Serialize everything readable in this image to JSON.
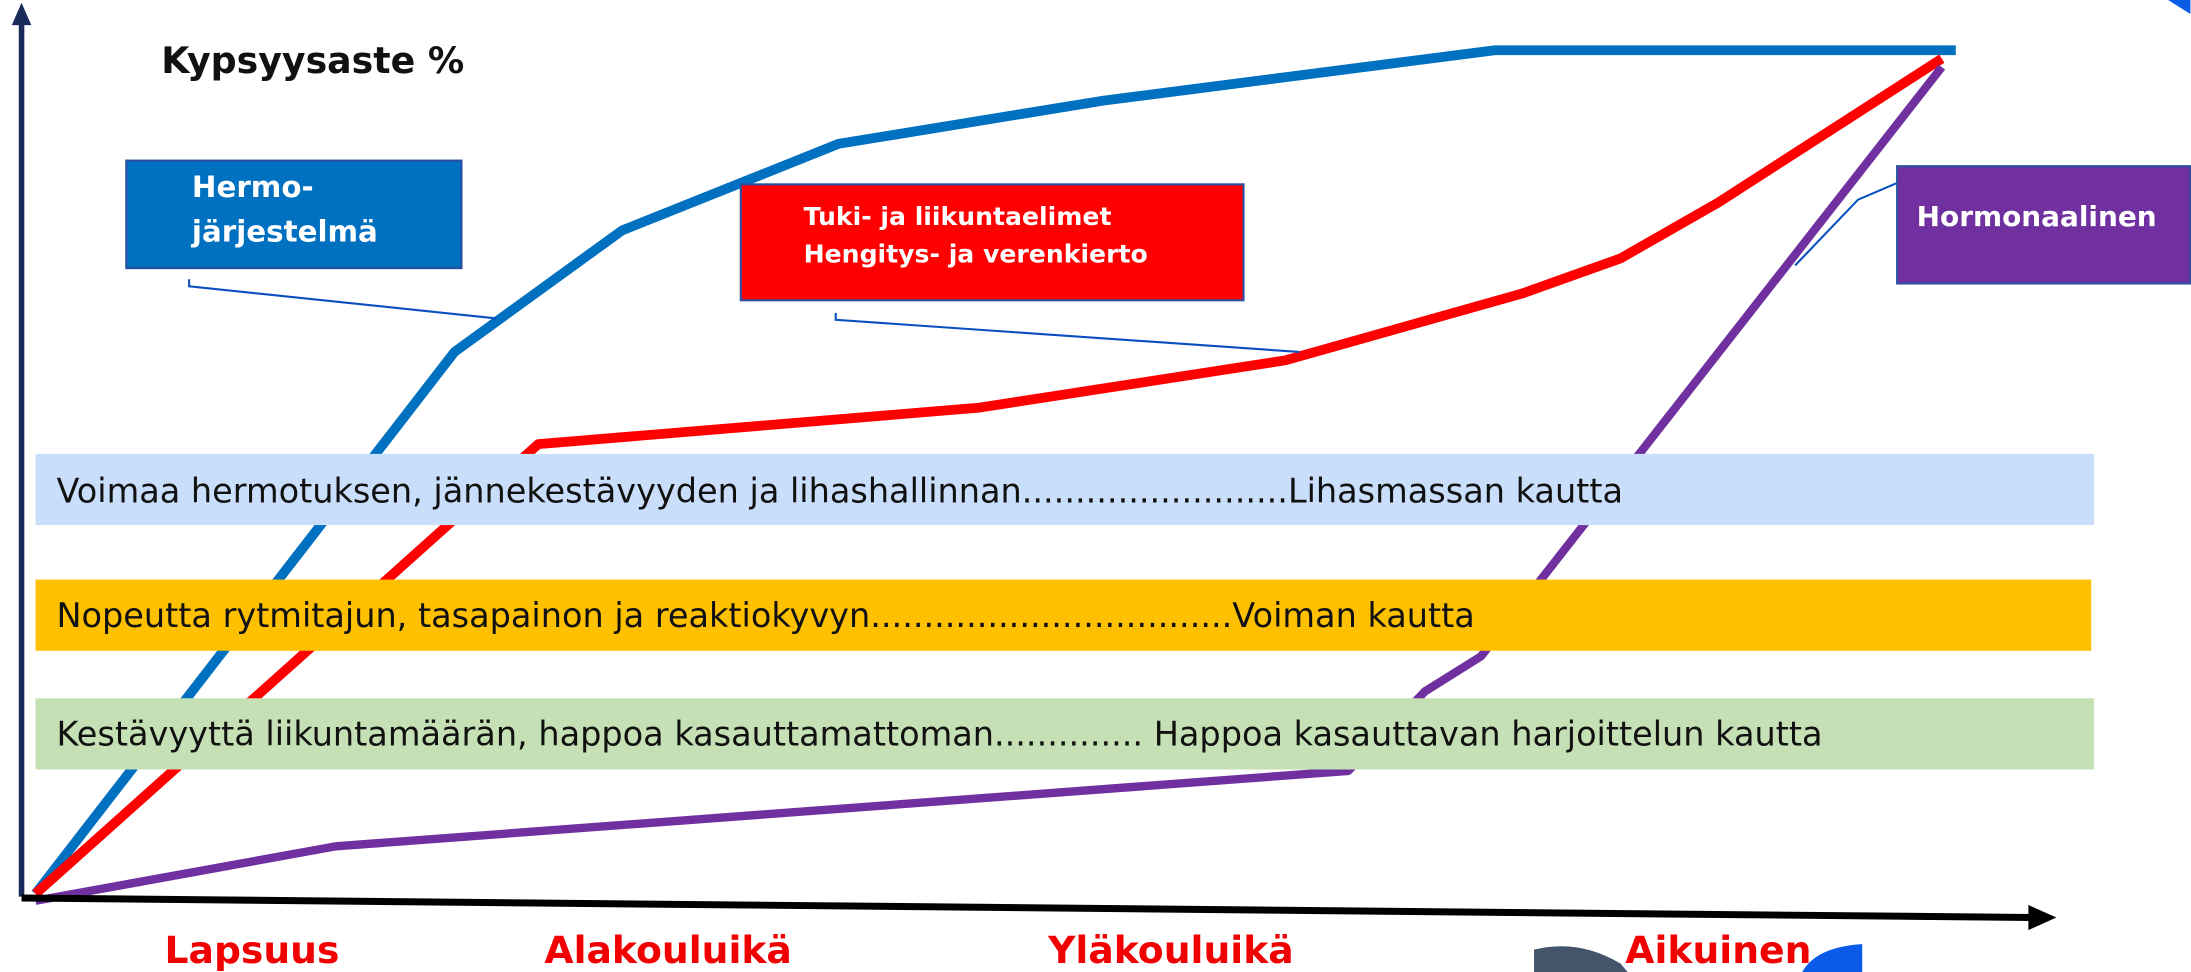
{
  "title": "Kypsyysaste %",
  "labels": {
    "nervous": [
      "Hermo-",
      "järjestelmä"
    ],
    "support": [
      "Tuki- ja liikuntaelimet",
      "Hengitys- ja verenkierto"
    ],
    "hormonal": "Hormonaalinen"
  },
  "bands": [
    "Voimaa hermotuksen, jännekestävyyden ja lihashallinnan.........................Lihasmassan kautta",
    "Nopeutta rytmitajun, tasapainon ja reaktiokyvyn..................................Voiman kautta",
    "Kestävyyttä liikuntamäärän, happoa kasauttamattoman.............. Happoa kasauttavan harjoittelun kautta"
  ],
  "stages": [
    "Lapsuus",
    "Alakouluikä",
    "Yläkouluikä",
    "Aikuinen"
  ]
}
